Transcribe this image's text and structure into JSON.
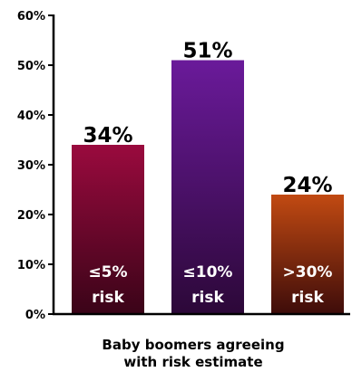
{
  "chart_data": {
    "type": "bar",
    "categories": [
      "≤5% risk",
      "≤10% risk",
      ">30% risk"
    ],
    "category_lines": [
      [
        "≤5%",
        "risk"
      ],
      [
        "≤10%",
        "risk"
      ],
      [
        ">30%",
        "risk"
      ]
    ],
    "values": [
      34,
      51,
      24
    ],
    "value_labels": [
      "34%",
      "51%",
      "24%"
    ],
    "bar_colors": [
      {
        "top": "#9a0a3e",
        "bottom": "#3a0418"
      },
      {
        "top": "#6a1a9a",
        "bottom": "#2c0838"
      },
      {
        "top": "#c24a12",
        "bottom": "#3e0c0a"
      }
    ],
    "title": "",
    "xlabel_lines": [
      "Baby boomers agreeing",
      "with risk estimate"
    ],
    "ylabel": "",
    "ylim": [
      0,
      60
    ],
    "y_ticks": [
      0,
      10,
      20,
      30,
      40,
      50,
      60
    ],
    "y_tick_labels": [
      "0%",
      "10%",
      "20%",
      "30%",
      "40%",
      "50%",
      "60%"
    ],
    "grid": false,
    "legend": "none"
  }
}
